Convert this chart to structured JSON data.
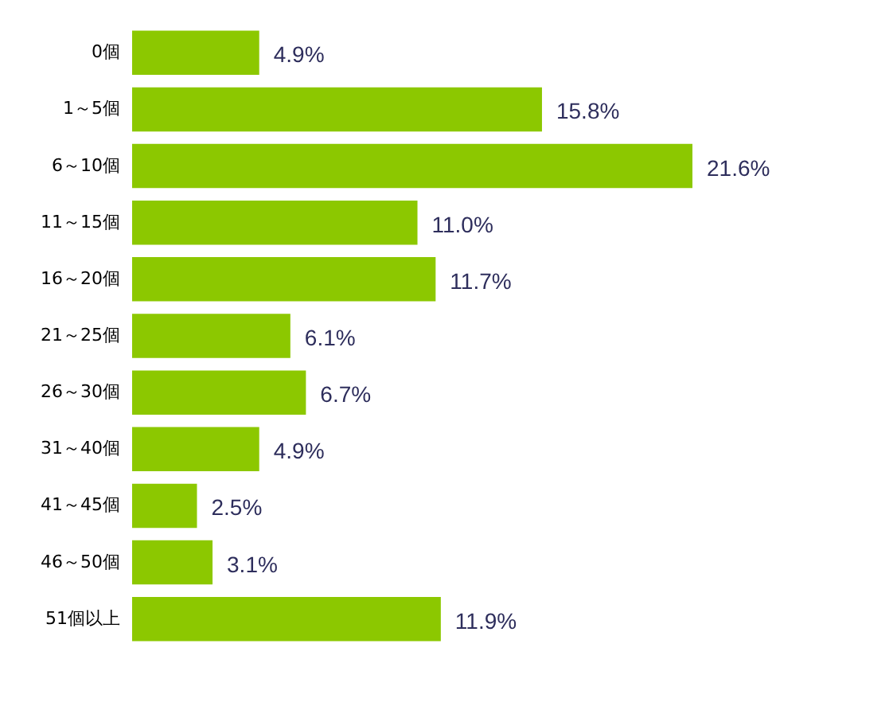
{
  "chart_data": {
    "type": "bar",
    "orientation": "horizontal",
    "categories": [
      "0個",
      "1～5個",
      "6～10個",
      "11～15個",
      "16～20個",
      "21～25個",
      "26～30個",
      "31～40個",
      "41～45個",
      "46～50個",
      "51個以上"
    ],
    "values": [
      4.9,
      15.8,
      21.6,
      11.0,
      11.7,
      6.1,
      6.7,
      4.9,
      2.5,
      3.1,
      11.9
    ],
    "value_labels": [
      "4.9%",
      "15.8%",
      "21.6%",
      "11.0%",
      "11.7%",
      "6.1%",
      "6.7%",
      "4.9%",
      "2.5%",
      "3.1%",
      "11.9%"
    ],
    "color": "#8cc800"
  }
}
